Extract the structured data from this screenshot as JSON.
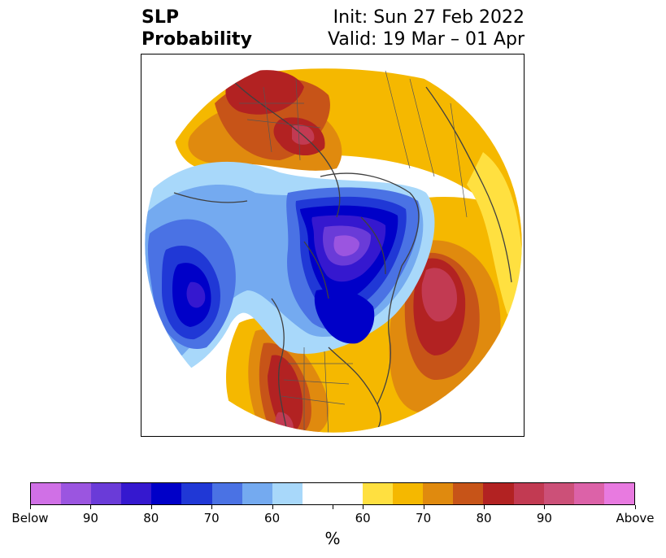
{
  "title": {
    "left_line1": "SLP",
    "left_line2": "Probability",
    "right_line1": "Init: Sun 27 Feb 2022",
    "right_line2": "Valid: 19 Mar – 01 Apr"
  },
  "map": {
    "projection": "north polar stereographic",
    "variable": "SLP",
    "features": [
      {
        "name": "negative-anomaly-arctic-center",
        "category": "Below",
        "level": 90
      },
      {
        "name": "negative-anomaly-north-pacific-center",
        "category": "Below",
        "level": 80
      },
      {
        "name": "positive-anomaly-north-atlantic-center",
        "category": "Above",
        "level": 90
      },
      {
        "name": "positive-anomaly-western-us-center",
        "category": "Above",
        "level": 90
      },
      {
        "name": "positive-anomaly-siberia-center",
        "category": "Above",
        "level": 80
      },
      {
        "name": "positive-anomaly-scandinavia-center",
        "category": "Above",
        "level": 80
      }
    ]
  },
  "colorbar": {
    "colors": [
      "#d070e6",
      "#9b55e0",
      "#6a3bd8",
      "#3518cf",
      "#0000c8",
      "#2038d6",
      "#4a72e4",
      "#74aaf0",
      "#a8d8fa",
      "#ffffff",
      "#ffffff",
      "#ffe040",
      "#f5b800",
      "#e08a0e",
      "#c75418",
      "#b22222",
      "#c23a52",
      "#cc5078",
      "#dc62a8",
      "#e87ae0"
    ],
    "tick_labels": [
      "Below",
      "90",
      "80",
      "70",
      "60",
      "60",
      "70",
      "80",
      "90",
      "Above"
    ],
    "unit_label": "%"
  }
}
